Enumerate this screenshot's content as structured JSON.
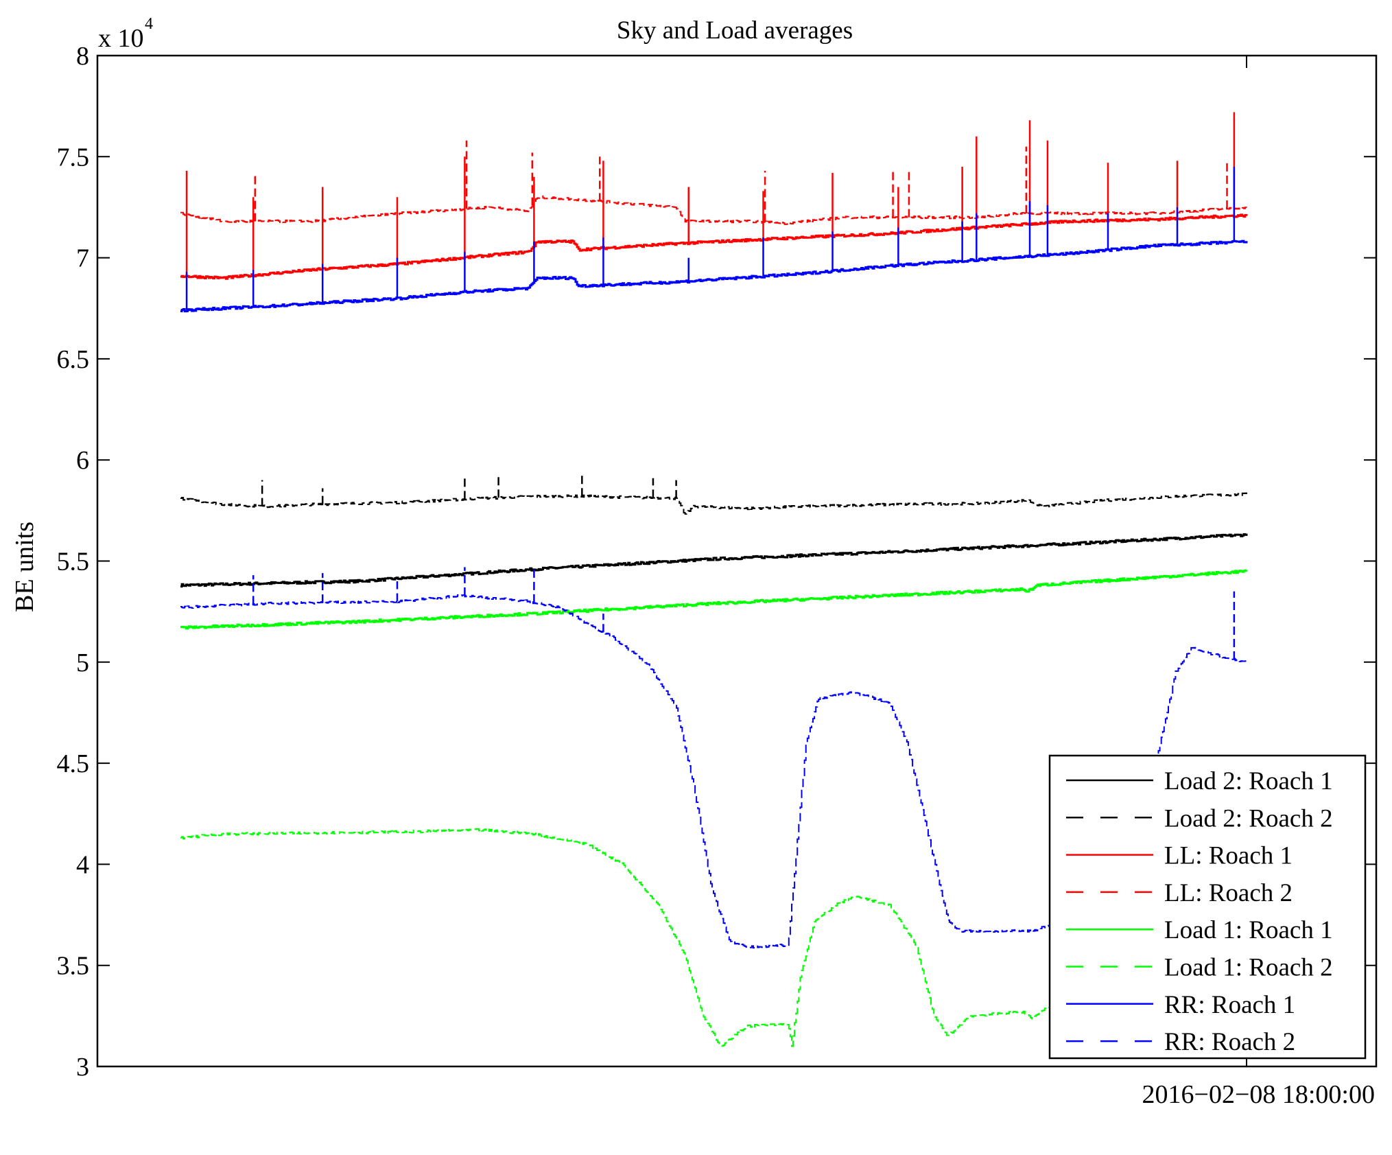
{
  "chart_data": {
    "type": "line",
    "title": "Sky and Load averages",
    "xlabel": "",
    "ylabel": "BE units",
    "y_multiplier_label": "x 10",
    "y_multiplier_exponent": "4",
    "ylim": [
      3,
      8
    ],
    "xlim": [
      -4.7,
      67.3
    ],
    "yticks": [
      3,
      3.5,
      4,
      4.5,
      5,
      5.5,
      6,
      6.5,
      7,
      7.5,
      8
    ],
    "ytick_labels": [
      "3",
      "3.5",
      "4",
      "4.5",
      "5",
      "5.5",
      "6",
      "6.5",
      "7",
      "7.5",
      "8"
    ],
    "xticks": [
      60
    ],
    "xtick_labels": [
      "2016−02−08 18:00:00"
    ],
    "grid": false,
    "legend_position": "bottom-right",
    "series": [
      {
        "name": "Load 2: Roach 1",
        "color": "#000000",
        "dashed": false,
        "points": [
          [
            0,
            5.38
          ],
          [
            10,
            5.4
          ],
          [
            20,
            5.46
          ],
          [
            30,
            5.51
          ],
          [
            40,
            5.545
          ],
          [
            50,
            5.585
          ],
          [
            60,
            5.63
          ]
        ],
        "spikes": []
      },
      {
        "name": "Load 2: Roach 2",
        "color": "#000000",
        "dashed": true,
        "points": [
          [
            0,
            5.81
          ],
          [
            2.4,
            5.78
          ],
          [
            4.9,
            5.77
          ],
          [
            7.4,
            5.78
          ],
          [
            12.4,
            5.79
          ],
          [
            16.9,
            5.81
          ],
          [
            19.9,
            5.82
          ],
          [
            22.9,
            5.82
          ],
          [
            27.9,
            5.81
          ],
          [
            28.4,
            5.73
          ],
          [
            28.9,
            5.77
          ],
          [
            31.9,
            5.76
          ],
          [
            35,
            5.77
          ],
          [
            40,
            5.78
          ],
          [
            45,
            5.785
          ],
          [
            47.7,
            5.8
          ],
          [
            48.4,
            5.77
          ],
          [
            52,
            5.8
          ],
          [
            56,
            5.82
          ],
          [
            60,
            5.83
          ]
        ],
        "spikes": [
          [
            4.6,
            5.9
          ],
          [
            8,
            5.86
          ],
          [
            16,
            5.92
          ],
          [
            17.9,
            5.93
          ],
          [
            22.6,
            5.94
          ],
          [
            26.6,
            5.91
          ],
          [
            27.9,
            5.9
          ]
        ]
      },
      {
        "name": "LL: Roach 1",
        "color": "#ff0000",
        "dashed": false,
        "points": [
          [
            0,
            6.91
          ],
          [
            2.4,
            6.9
          ],
          [
            7.4,
            6.94
          ],
          [
            12.4,
            6.97
          ],
          [
            15.9,
            7.0
          ],
          [
            19.6,
            7.03
          ],
          [
            20.1,
            7.08
          ],
          [
            22.1,
            7.08
          ],
          [
            22.4,
            7.04
          ],
          [
            27.9,
            7.07
          ],
          [
            34.9,
            7.1
          ],
          [
            39.9,
            7.12
          ],
          [
            44.9,
            7.15
          ],
          [
            49.9,
            7.18
          ],
          [
            54.9,
            7.19
          ],
          [
            60,
            7.21
          ]
        ],
        "spikes": [
          [
            0.35,
            7.43
          ],
          [
            4.1,
            7.3
          ],
          [
            8,
            7.35
          ],
          [
            12.2,
            7.3
          ],
          [
            16,
            7.5
          ],
          [
            19.9,
            7.4
          ],
          [
            23.8,
            7.48
          ],
          [
            28.6,
            7.35
          ],
          [
            32.8,
            7.33
          ],
          [
            36.7,
            7.42
          ],
          [
            40.4,
            7.35
          ],
          [
            44,
            7.45
          ],
          [
            44.8,
            7.6
          ],
          [
            47.8,
            7.68
          ],
          [
            48.8,
            7.58
          ],
          [
            52.2,
            7.47
          ],
          [
            56.1,
            7.48
          ],
          [
            59.3,
            7.72
          ]
        ]
      },
      {
        "name": "LL: Roach 2",
        "color": "#ff0000",
        "dashed": true,
        "points": [
          [
            0,
            7.22
          ],
          [
            2.4,
            7.18
          ],
          [
            7.4,
            7.18
          ],
          [
            12.4,
            7.22
          ],
          [
            17.4,
            7.25
          ],
          [
            19.6,
            7.23
          ],
          [
            20.1,
            7.3
          ],
          [
            22.1,
            7.29
          ],
          [
            24.9,
            7.27
          ],
          [
            27.9,
            7.25
          ],
          [
            28.4,
            7.18
          ],
          [
            32.4,
            7.18
          ],
          [
            33.9,
            7.17
          ],
          [
            37.4,
            7.2
          ],
          [
            44.9,
            7.2
          ],
          [
            47.4,
            7.22
          ],
          [
            54.9,
            7.22
          ],
          [
            60,
            7.25
          ]
        ],
        "spikes": [
          [
            4.2,
            7.42
          ],
          [
            16.1,
            7.58
          ],
          [
            19.8,
            7.52
          ],
          [
            23.6,
            7.5
          ],
          [
            32.9,
            7.43
          ],
          [
            40.1,
            7.44
          ],
          [
            41,
            7.44
          ],
          [
            47.6,
            7.55
          ],
          [
            58.9,
            7.48
          ]
        ]
      },
      {
        "name": "Load 1: Roach 1",
        "color": "#00ff00",
        "dashed": false,
        "points": [
          [
            0,
            5.17
          ],
          [
            10,
            5.2
          ],
          [
            20,
            5.24
          ],
          [
            30,
            5.29
          ],
          [
            40,
            5.33
          ],
          [
            47.4,
            5.36
          ],
          [
            47.7,
            5.35
          ],
          [
            48.2,
            5.38
          ],
          [
            54.9,
            5.42
          ],
          [
            60,
            5.45
          ]
        ],
        "spikes": []
      },
      {
        "name": "Load 1: Roach 2",
        "color": "#00ff00",
        "dashed": true,
        "points": [
          [
            0,
            4.13
          ],
          [
            2.4,
            4.15
          ],
          [
            12.4,
            4.16
          ],
          [
            16.9,
            4.17
          ],
          [
            19.9,
            4.15
          ],
          [
            22.9,
            4.1
          ],
          [
            24.9,
            4.0
          ],
          [
            26.9,
            3.8
          ],
          [
            28.4,
            3.55
          ],
          [
            29.4,
            3.25
          ],
          [
            30.4,
            3.1
          ],
          [
            31.9,
            3.2
          ],
          [
            34.2,
            3.21
          ],
          [
            34.4,
            3.1
          ],
          [
            34.9,
            3.45
          ],
          [
            35.7,
            3.72
          ],
          [
            36.9,
            3.8
          ],
          [
            37.9,
            3.84
          ],
          [
            39.9,
            3.8
          ],
          [
            41.4,
            3.6
          ],
          [
            42.4,
            3.25
          ],
          [
            43.2,
            3.15
          ],
          [
            44.4,
            3.25
          ],
          [
            47.4,
            3.27
          ],
          [
            47.9,
            3.24
          ],
          [
            48.9,
            3.3
          ],
          [
            54.9,
            3.38
          ],
          [
            60,
            3.45
          ]
        ],
        "spikes": []
      },
      {
        "name": "RR: Roach 1",
        "color": "#0000ff",
        "dashed": false,
        "points": [
          [
            0,
            6.74
          ],
          [
            4.9,
            6.76
          ],
          [
            12.4,
            6.8
          ],
          [
            15.9,
            6.83
          ],
          [
            19.6,
            6.85
          ],
          [
            20.1,
            6.9
          ],
          [
            22.1,
            6.9
          ],
          [
            22.4,
            6.86
          ],
          [
            27.9,
            6.88
          ],
          [
            34.9,
            6.92
          ],
          [
            39.9,
            6.96
          ],
          [
            44.9,
            6.99
          ],
          [
            49.9,
            7.02
          ],
          [
            54.9,
            7.06
          ],
          [
            60,
            7.08
          ]
        ],
        "spikes": [
          [
            0.35,
            6.93
          ],
          [
            4.1,
            6.94
          ],
          [
            8,
            6.97
          ],
          [
            12.2,
            7.0
          ],
          [
            16,
            7.03
          ],
          [
            19.9,
            7.08
          ],
          [
            23.8,
            7.1
          ],
          [
            28.6,
            7.0
          ],
          [
            32.8,
            7.1
          ],
          [
            36.7,
            7.13
          ],
          [
            40.4,
            7.15
          ],
          [
            44,
            7.18
          ],
          [
            44.8,
            7.22
          ],
          [
            47.8,
            7.28
          ],
          [
            48.8,
            7.26
          ],
          [
            52.2,
            7.22
          ],
          [
            56.1,
            7.25
          ],
          [
            59.3,
            7.45
          ]
        ]
      },
      {
        "name": "RR: Roach 2",
        "color": "#0000ff",
        "dashed": true,
        "points": [
          [
            0,
            5.27
          ],
          [
            4.9,
            5.29
          ],
          [
            12.4,
            5.3
          ],
          [
            15.9,
            5.33
          ],
          [
            19.6,
            5.3
          ],
          [
            21.4,
            5.27
          ],
          [
            22.9,
            5.19
          ],
          [
            24.4,
            5.12
          ],
          [
            26.4,
            4.98
          ],
          [
            27.9,
            4.78
          ],
          [
            28.9,
            4.38
          ],
          [
            29.9,
            3.88
          ],
          [
            30.9,
            3.62
          ],
          [
            31.9,
            3.59
          ],
          [
            34.2,
            3.6
          ],
          [
            34.7,
            4.1
          ],
          [
            35.2,
            4.6
          ],
          [
            35.9,
            4.82
          ],
          [
            37.9,
            4.85
          ],
          [
            39.9,
            4.8
          ],
          [
            40.9,
            4.6
          ],
          [
            42.2,
            4.1
          ],
          [
            43.2,
            3.72
          ],
          [
            43.9,
            3.67
          ],
          [
            47.9,
            3.67
          ],
          [
            48.9,
            3.7
          ],
          [
            52,
            4.0
          ],
          [
            54.9,
            4.5
          ],
          [
            56,
            4.95
          ],
          [
            56.9,
            5.07
          ],
          [
            58.9,
            5.02
          ],
          [
            60,
            5.0
          ]
        ],
        "spikes": [
          [
            4.1,
            5.43
          ],
          [
            8,
            5.44
          ],
          [
            12.2,
            5.4
          ],
          [
            16,
            5.47
          ],
          [
            19.9,
            5.46
          ],
          [
            23.8,
            5.24
          ],
          [
            59.3,
            5.35
          ]
        ]
      }
    ]
  }
}
